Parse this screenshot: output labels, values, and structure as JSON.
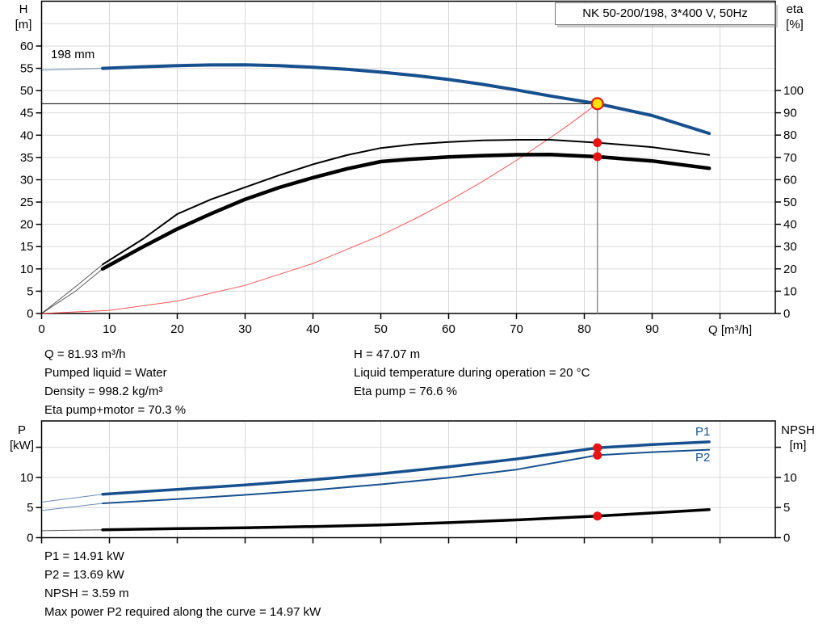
{
  "colors": {
    "curve_blue": "#17508e",
    "curve_black": "#000000",
    "parabola_red": "#ff5555",
    "marker_red": "#e81313",
    "marker_yellow": "#ffe200",
    "grid": "#d9d9d9",
    "axis": "#000000",
    "ref_gray": "#8f8f8f"
  },
  "info_left": {
    "line1": "Q = 81.93 m³/h",
    "line2": "Pumped liquid = Water",
    "line3": "Density = 998.2 kg/m³",
    "line4": "Eta pump+motor = 70.3 %"
  },
  "info_right": {
    "line1": "H = 47.07 m",
    "line2": "Liquid temperature during operation = 20 °C",
    "line3": "Eta pump = 76.6 %"
  },
  "info_bottom": {
    "line1": "P1 = 14.91 kW",
    "line2": "P2 = 13.69 kW",
    "line3": "NPSH = 3.59 m",
    "line4": "Max power P2 required along the curve = 14.97 kW"
  },
  "chart_data": [
    {
      "type": "line",
      "name": "pump-performance-curve",
      "title": "NK 50-200/198, 3*400 V, 50Hz",
      "x_axis": {
        "label": "Q [m³/h]",
        "ticks": [
          0,
          10,
          20,
          30,
          40,
          50,
          60,
          70,
          80,
          90,
          100
        ],
        "tick_labels": [
          "0",
          "10",
          "20",
          "30",
          "40",
          "50",
          "60",
          "70",
          "80",
          "90",
          ""
        ]
      },
      "left_axis": {
        "label_line1": "H",
        "label_line2": "[m]",
        "ticks": [
          0,
          5,
          10,
          15,
          20,
          25,
          30,
          35,
          40,
          45,
          50,
          55,
          60
        ],
        "tick_labels": [
          "0",
          "5",
          "10",
          "15",
          "20",
          "25",
          "30",
          "35",
          "40",
          "45",
          "50",
          "55",
          "60"
        ]
      },
      "right_axis": {
        "label_line1": "eta",
        "label_line2": "[%]",
        "ticks": [
          0,
          10,
          20,
          30,
          40,
          50,
          60,
          70,
          80,
          90,
          100
        ],
        "tick_labels": [
          "0",
          "10",
          "20",
          "30",
          "40",
          "50",
          "60",
          "70",
          "80",
          "90",
          "100"
        ]
      },
      "ref": {
        "q": 81.93,
        "h": 47.07
      },
      "series": [
        {
          "name": "duty-parabola",
          "axis": "left",
          "color": "#ff5555",
          "width": 1,
          "q": [
            0,
            10,
            20,
            30,
            40,
            50,
            55,
            60,
            65,
            70,
            75,
            78,
            81.93
          ],
          "v": [
            0,
            0.7,
            2.8,
            6.31,
            11.22,
            17.53,
            21.21,
            25.24,
            29.62,
            34.35,
            39.44,
            42.65,
            47.07
          ]
        },
        {
          "name": "head-curve",
          "label": "198 mm",
          "axis": "left",
          "color": "#17508e",
          "width": 4,
          "thin_until": 9,
          "q": [
            0,
            9,
            15,
            20,
            25,
            30,
            35,
            40,
            45,
            50,
            55,
            60,
            65,
            70,
            75,
            81.93,
            90,
            98.4
          ],
          "v": [
            54.6,
            55.0,
            55.35,
            55.6,
            55.75,
            55.8,
            55.6,
            55.25,
            54.8,
            54.15,
            53.4,
            52.5,
            51.4,
            50.15,
            48.8,
            47.07,
            44.4,
            40.4
          ]
        },
        {
          "name": "eta-pump-curve",
          "axis": "right",
          "color": "#000000",
          "width": 2,
          "thin_until": 9,
          "q": [
            0,
            5,
            9,
            15,
            20,
            25,
            30,
            35,
            40,
            45,
            50,
            55,
            60,
            65,
            70,
            75,
            81.93,
            90,
            98.4
          ],
          "v": [
            0,
            12,
            22,
            33.5,
            44.6,
            51.2,
            56.6,
            62,
            66.9,
            71,
            74.2,
            75.9,
            76.9,
            77.6,
            77.9,
            77.9,
            76.6,
            74.6,
            71.1
          ]
        },
        {
          "name": "eta-pump-motor-curve",
          "axis": "right",
          "color": "#000000",
          "width": 4.5,
          "thin_until": 9,
          "q": [
            0,
            5,
            9,
            15,
            20,
            25,
            30,
            35,
            40,
            45,
            50,
            55,
            60,
            65,
            70,
            75,
            81.93,
            90,
            98.4
          ],
          "v": [
            0,
            10,
            20,
            30,
            37.9,
            44.8,
            51.2,
            56.5,
            60.9,
            64.9,
            68.1,
            69.3,
            70.2,
            70.8,
            71.2,
            71.3,
            70.3,
            68.4,
            65.1
          ]
        }
      ],
      "markers": [
        {
          "name": "operating-point",
          "axis": "left",
          "q": 81.93,
          "v": 47.07,
          "style": "yellow"
        },
        {
          "name": "eta-pump-point",
          "axis": "right",
          "q": 81.93,
          "v": 76.6,
          "style": "red"
        },
        {
          "name": "eta-pump-motor-point",
          "axis": "right",
          "q": 81.93,
          "v": 70.3,
          "style": "red"
        }
      ]
    },
    {
      "type": "line",
      "name": "power-npsh-curve",
      "x_axis": {
        "label": "",
        "ticks": [
          0,
          10,
          20,
          30,
          40,
          50,
          60,
          70,
          80,
          90,
          100
        ],
        "tick_labels": [
          "",
          "",
          "",
          "",
          "",
          "",
          "",
          "",
          "",
          "",
          ""
        ]
      },
      "left_axis": {
        "label_line1": "P",
        "label_line2": "[kW]",
        "ticks": [
          0,
          5,
          10,
          15
        ],
        "tick_labels": [
          "0",
          "5",
          "10",
          ""
        ]
      },
      "right_axis": {
        "label_line1": "NPSH",
        "label_line2": "[m]",
        "ticks": [
          0,
          5,
          10,
          15
        ],
        "tick_labels": [
          "0",
          "5",
          "10",
          ""
        ]
      },
      "series": [
        {
          "name": "p1-curve",
          "label": "P1",
          "axis": "left",
          "color": "#17508e",
          "width": 3.5,
          "thin_until": 9,
          "q": [
            0,
            9,
            20,
            30,
            40,
            50,
            60,
            70,
            81.93,
            90,
            98.4
          ],
          "v": [
            5.9,
            7.2,
            8.0,
            8.75,
            9.6,
            10.6,
            11.75,
            13.05,
            14.91,
            15.45,
            15.9
          ]
        },
        {
          "name": "p2-curve",
          "label": "P2",
          "axis": "left",
          "color": "#17508e",
          "width": 2,
          "thin_until": 9,
          "q": [
            0,
            9,
            20,
            30,
            40,
            50,
            60,
            70,
            81.93,
            90,
            98.4
          ],
          "v": [
            4.5,
            5.7,
            6.4,
            7.1,
            7.9,
            8.85,
            9.95,
            11.3,
            13.69,
            14.2,
            14.6
          ]
        },
        {
          "name": "npsh-curve",
          "axis": "right",
          "color": "#000000",
          "width": 3.5,
          "thin_until": 9,
          "q": [
            0,
            9,
            20,
            30,
            40,
            50,
            60,
            70,
            81.93,
            90,
            98.4
          ],
          "v": [
            1.15,
            1.3,
            1.5,
            1.65,
            1.85,
            2.1,
            2.5,
            2.95,
            3.59,
            4.1,
            4.65
          ]
        }
      ],
      "markers": [
        {
          "name": "p1-point",
          "axis": "left",
          "q": 81.93,
          "v": 14.91,
          "style": "red"
        },
        {
          "name": "p2-point",
          "axis": "left",
          "q": 81.93,
          "v": 13.69,
          "style": "red"
        },
        {
          "name": "npsh-point",
          "axis": "right",
          "q": 81.93,
          "v": 3.59,
          "style": "red"
        }
      ]
    }
  ]
}
